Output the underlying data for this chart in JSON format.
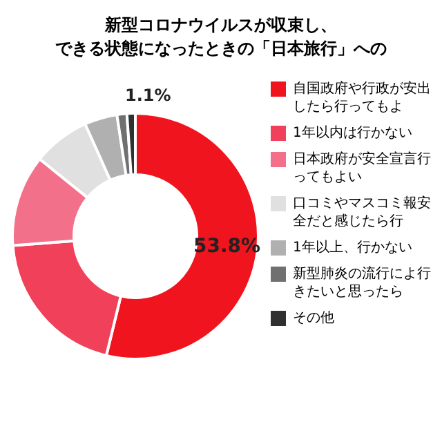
{
  "chart_data": {
    "type": "donut",
    "title": "新型コロナウイルスが収束し、",
    "subtitle": "できる状態になったときの「日本旅行」への",
    "categories": [
      "自国政府や行政が安出したら行ってもよ",
      "1年以内は行かない",
      "日本政府が安全宣言行ってもよい",
      "口コミやマスコミ報安全だと感じたら行",
      "1年以上、行かない",
      "新型肺炎の流行によ行きたいと思ったら",
      "その他"
    ],
    "values": [
      53.8,
      20.0,
      12.0,
      7.5,
      4.3,
      1.3,
      1.1
    ],
    "colors": [
      "#f0141e",
      "#f0405a",
      "#f2708a",
      "#e0e0e0",
      "#b0b0b0",
      "#707070",
      "#303030"
    ],
    "value_labels": [
      "53.8%",
      null,
      null,
      null,
      null,
      null,
      "1.1%"
    ],
    "legend": "right"
  }
}
